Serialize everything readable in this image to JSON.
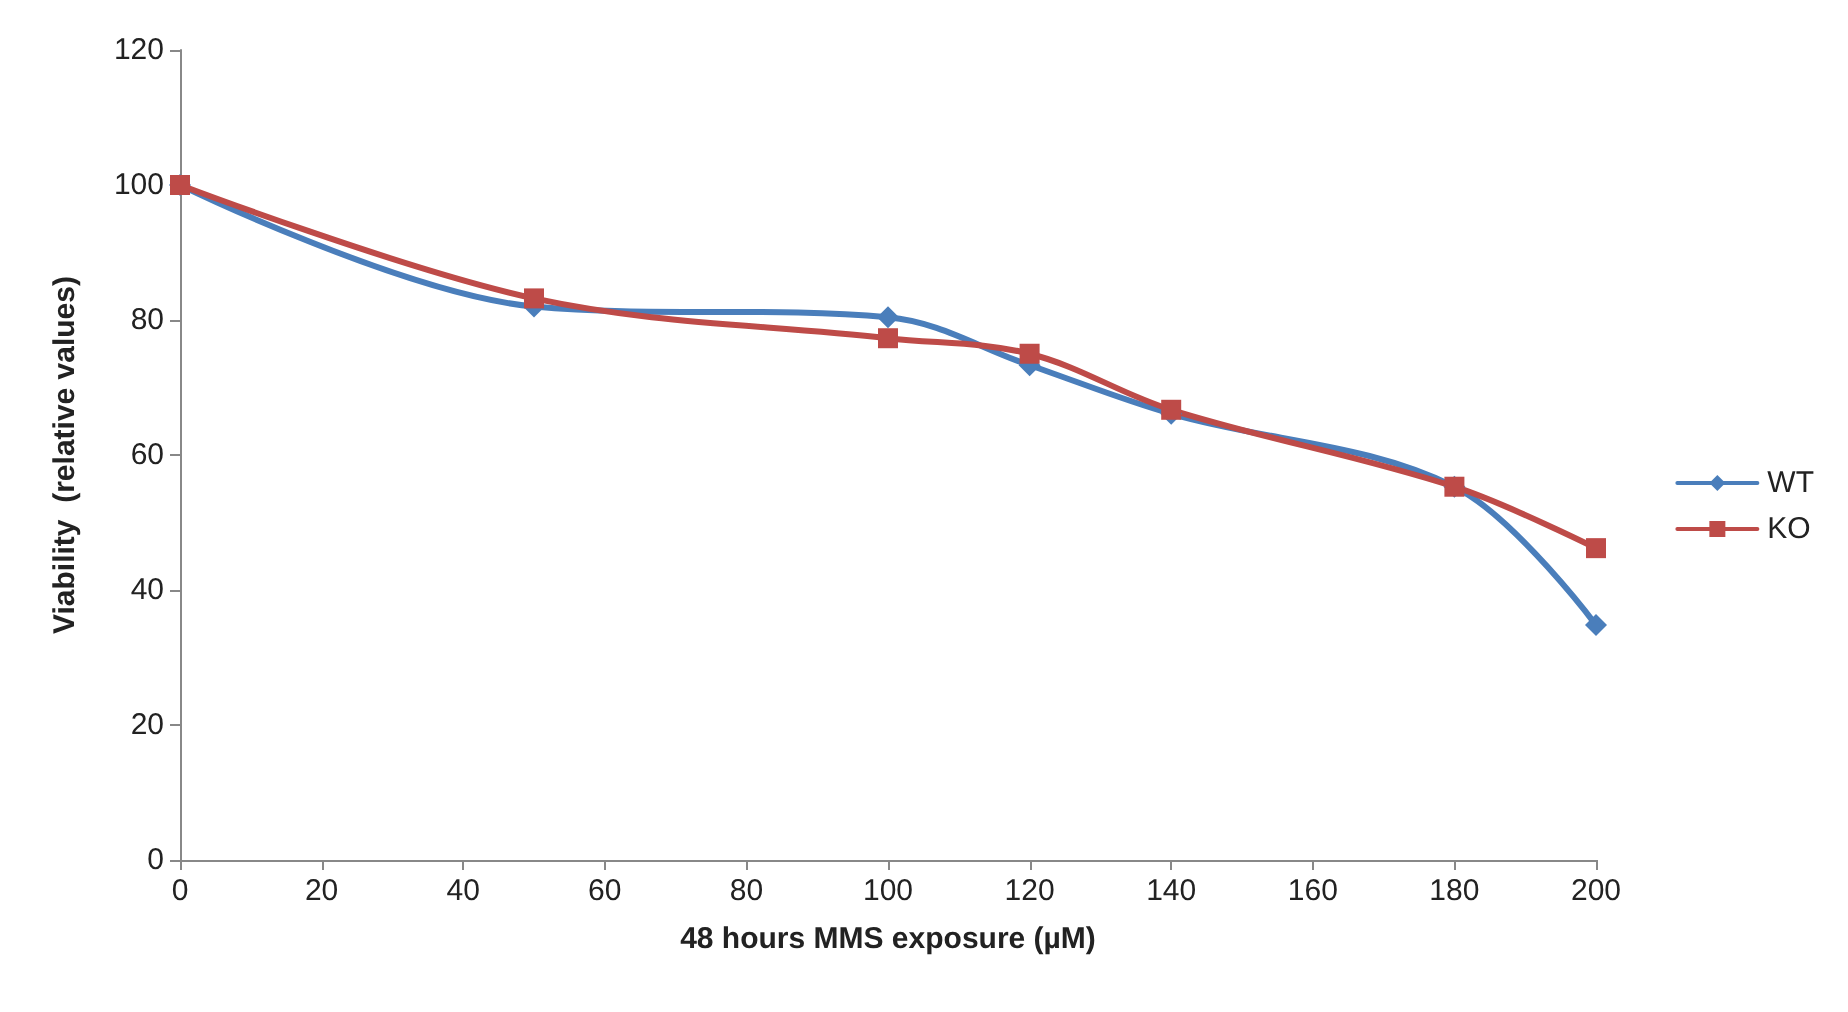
{
  "chart_data": {
    "type": "line",
    "xlabel": "48 hours MMS exposure (µM)",
    "ylabel": "Viability  (relative values)",
    "x": [
      0,
      50,
      100,
      120,
      140,
      180,
      200
    ],
    "series": [
      {
        "name": "WT",
        "color": "#4a7ebb",
        "marker": "diamond",
        "values": [
          100,
          82,
          80.4,
          73.3,
          66.1,
          55.3,
          34.8
        ]
      },
      {
        "name": "KO",
        "color": "#be4b48",
        "marker": "square",
        "values": [
          100,
          83.2,
          77.3,
          75,
          66.7,
          55.3,
          46.2
        ]
      }
    ],
    "xlim": [
      0,
      200
    ],
    "xticks": [
      0,
      20,
      40,
      60,
      80,
      100,
      120,
      140,
      160,
      180,
      200
    ],
    "ylim": [
      0,
      120
    ],
    "yticks": [
      0,
      20,
      40,
      60,
      80,
      100,
      120
    ],
    "grid": false,
    "legend": "right",
    "line_style": "solid"
  }
}
